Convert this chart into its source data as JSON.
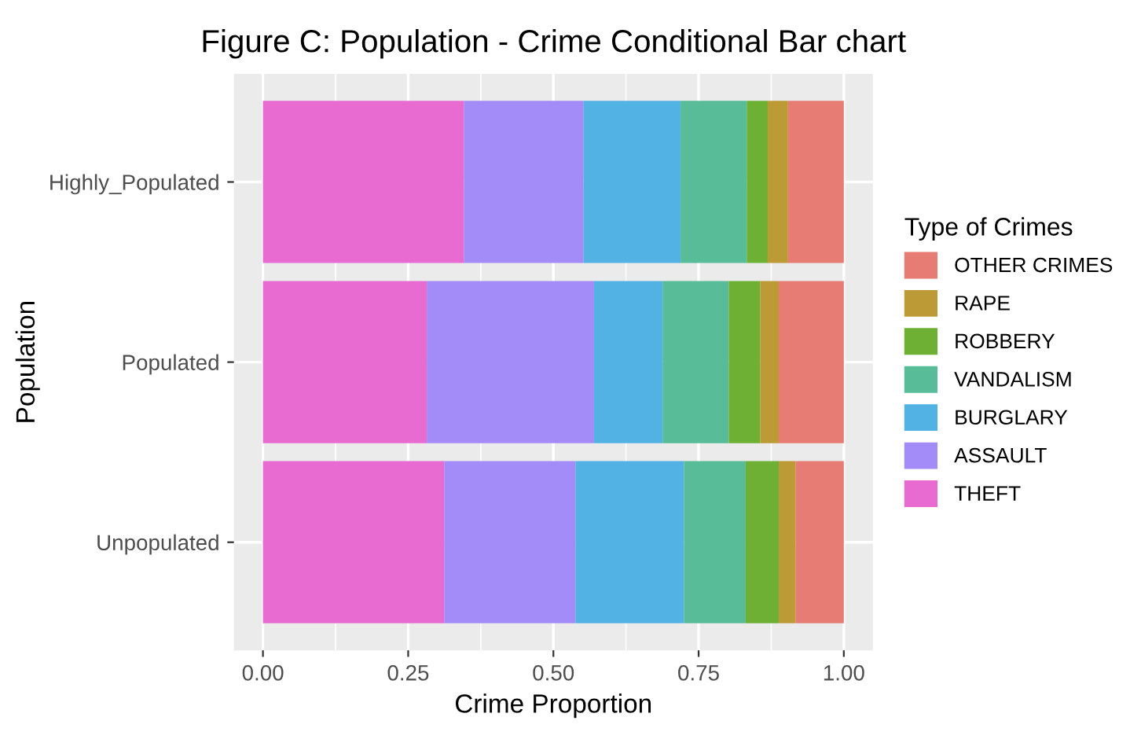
{
  "chart_data": {
    "type": "bar",
    "orientation": "horizontal",
    "stacked": true,
    "title": "Figure C: Population - Crime Conditional Bar chart",
    "xlabel": "Crime Proportion",
    "ylabel": "Population",
    "legend_title": "Type of Crimes",
    "categories": [
      "Highly_Populated",
      "Populated",
      "Unpopulated"
    ],
    "series": [
      {
        "name": "THEFT",
        "color": "#e86bd2",
        "values": [
          0.346,
          0.282,
          0.312
        ]
      },
      {
        "name": "ASSAULT",
        "color": "#a38cf8",
        "values": [
          0.206,
          0.288,
          0.226
        ]
      },
      {
        "name": "BURGLARY",
        "color": "#53b2e4",
        "values": [
          0.167,
          0.118,
          0.187
        ]
      },
      {
        "name": "VANDALISM",
        "color": "#57bc97",
        "values": [
          0.114,
          0.114,
          0.106
        ]
      },
      {
        "name": "ROBBERY",
        "color": "#6db034",
        "values": [
          0.036,
          0.054,
          0.057
        ]
      },
      {
        "name": "RAPE",
        "color": "#bc9a35",
        "values": [
          0.035,
          0.032,
          0.029
        ]
      },
      {
        "name": "OTHER CRIMES",
        "color": "#e67c73",
        "values": [
          0.096,
          0.112,
          0.083
        ]
      }
    ],
    "xlim": [
      -0.05,
      1.05
    ],
    "xticks": [
      {
        "value": 0,
        "label": "0.00"
      },
      {
        "value": 0.25,
        "label": "0.25"
      },
      {
        "value": 0.5,
        "label": "0.50"
      },
      {
        "value": 0.75,
        "label": "0.75"
      },
      {
        "value": 1,
        "label": "1.00"
      }
    ],
    "grid": true,
    "legend": "right"
  }
}
